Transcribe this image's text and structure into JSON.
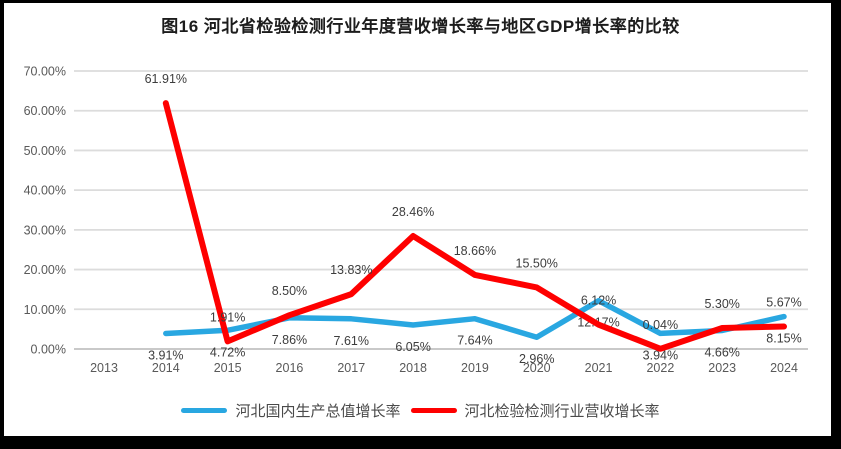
{
  "chart_data": {
    "type": "line",
    "title": "图16 河北省检验检测行业年度营收增长率与地区GDP增长率的比较",
    "categories": [
      "2013",
      "2014",
      "2015",
      "2016",
      "2017",
      "2018",
      "2019",
      "2020",
      "2021",
      "2022",
      "2023",
      "2024"
    ],
    "series": [
      {
        "name": "河北国内生产总值增长率",
        "color": "#29A7E1",
        "label_position": "below",
        "values": [
          null,
          3.91,
          4.72,
          7.86,
          7.61,
          6.05,
          7.64,
          2.96,
          12.17,
          3.94,
          4.66,
          8.15
        ]
      },
      {
        "name": "河北检验检测行业营收增长率",
        "color": "#FE0000",
        "label_position": "above",
        "values": [
          null,
          61.91,
          1.91,
          8.5,
          13.83,
          28.46,
          18.66,
          15.5,
          6.12,
          0.04,
          5.3,
          5.67
        ]
      }
    ],
    "xlabel": "",
    "ylabel": "",
    "ylim": [
      0,
      70
    ],
    "ytick_step": 10,
    "ytick_labels": [
      "0.00%",
      "10.00%",
      "20.00%",
      "30.00%",
      "40.00%",
      "50.00%",
      "60.00%",
      "70.00%"
    ],
    "grid": true,
    "legend_position": "bottom",
    "data_label_format": "0.00%",
    "style_colors": {
      "gridline": "#DCDCDC",
      "axis_line": "#C9C9C9",
      "tick_text": "#595959",
      "data_label_text": "#3D3D3D",
      "title_text": "#1C1C1C",
      "frame_border": "#000000",
      "background": "#FFFFFF"
    }
  }
}
